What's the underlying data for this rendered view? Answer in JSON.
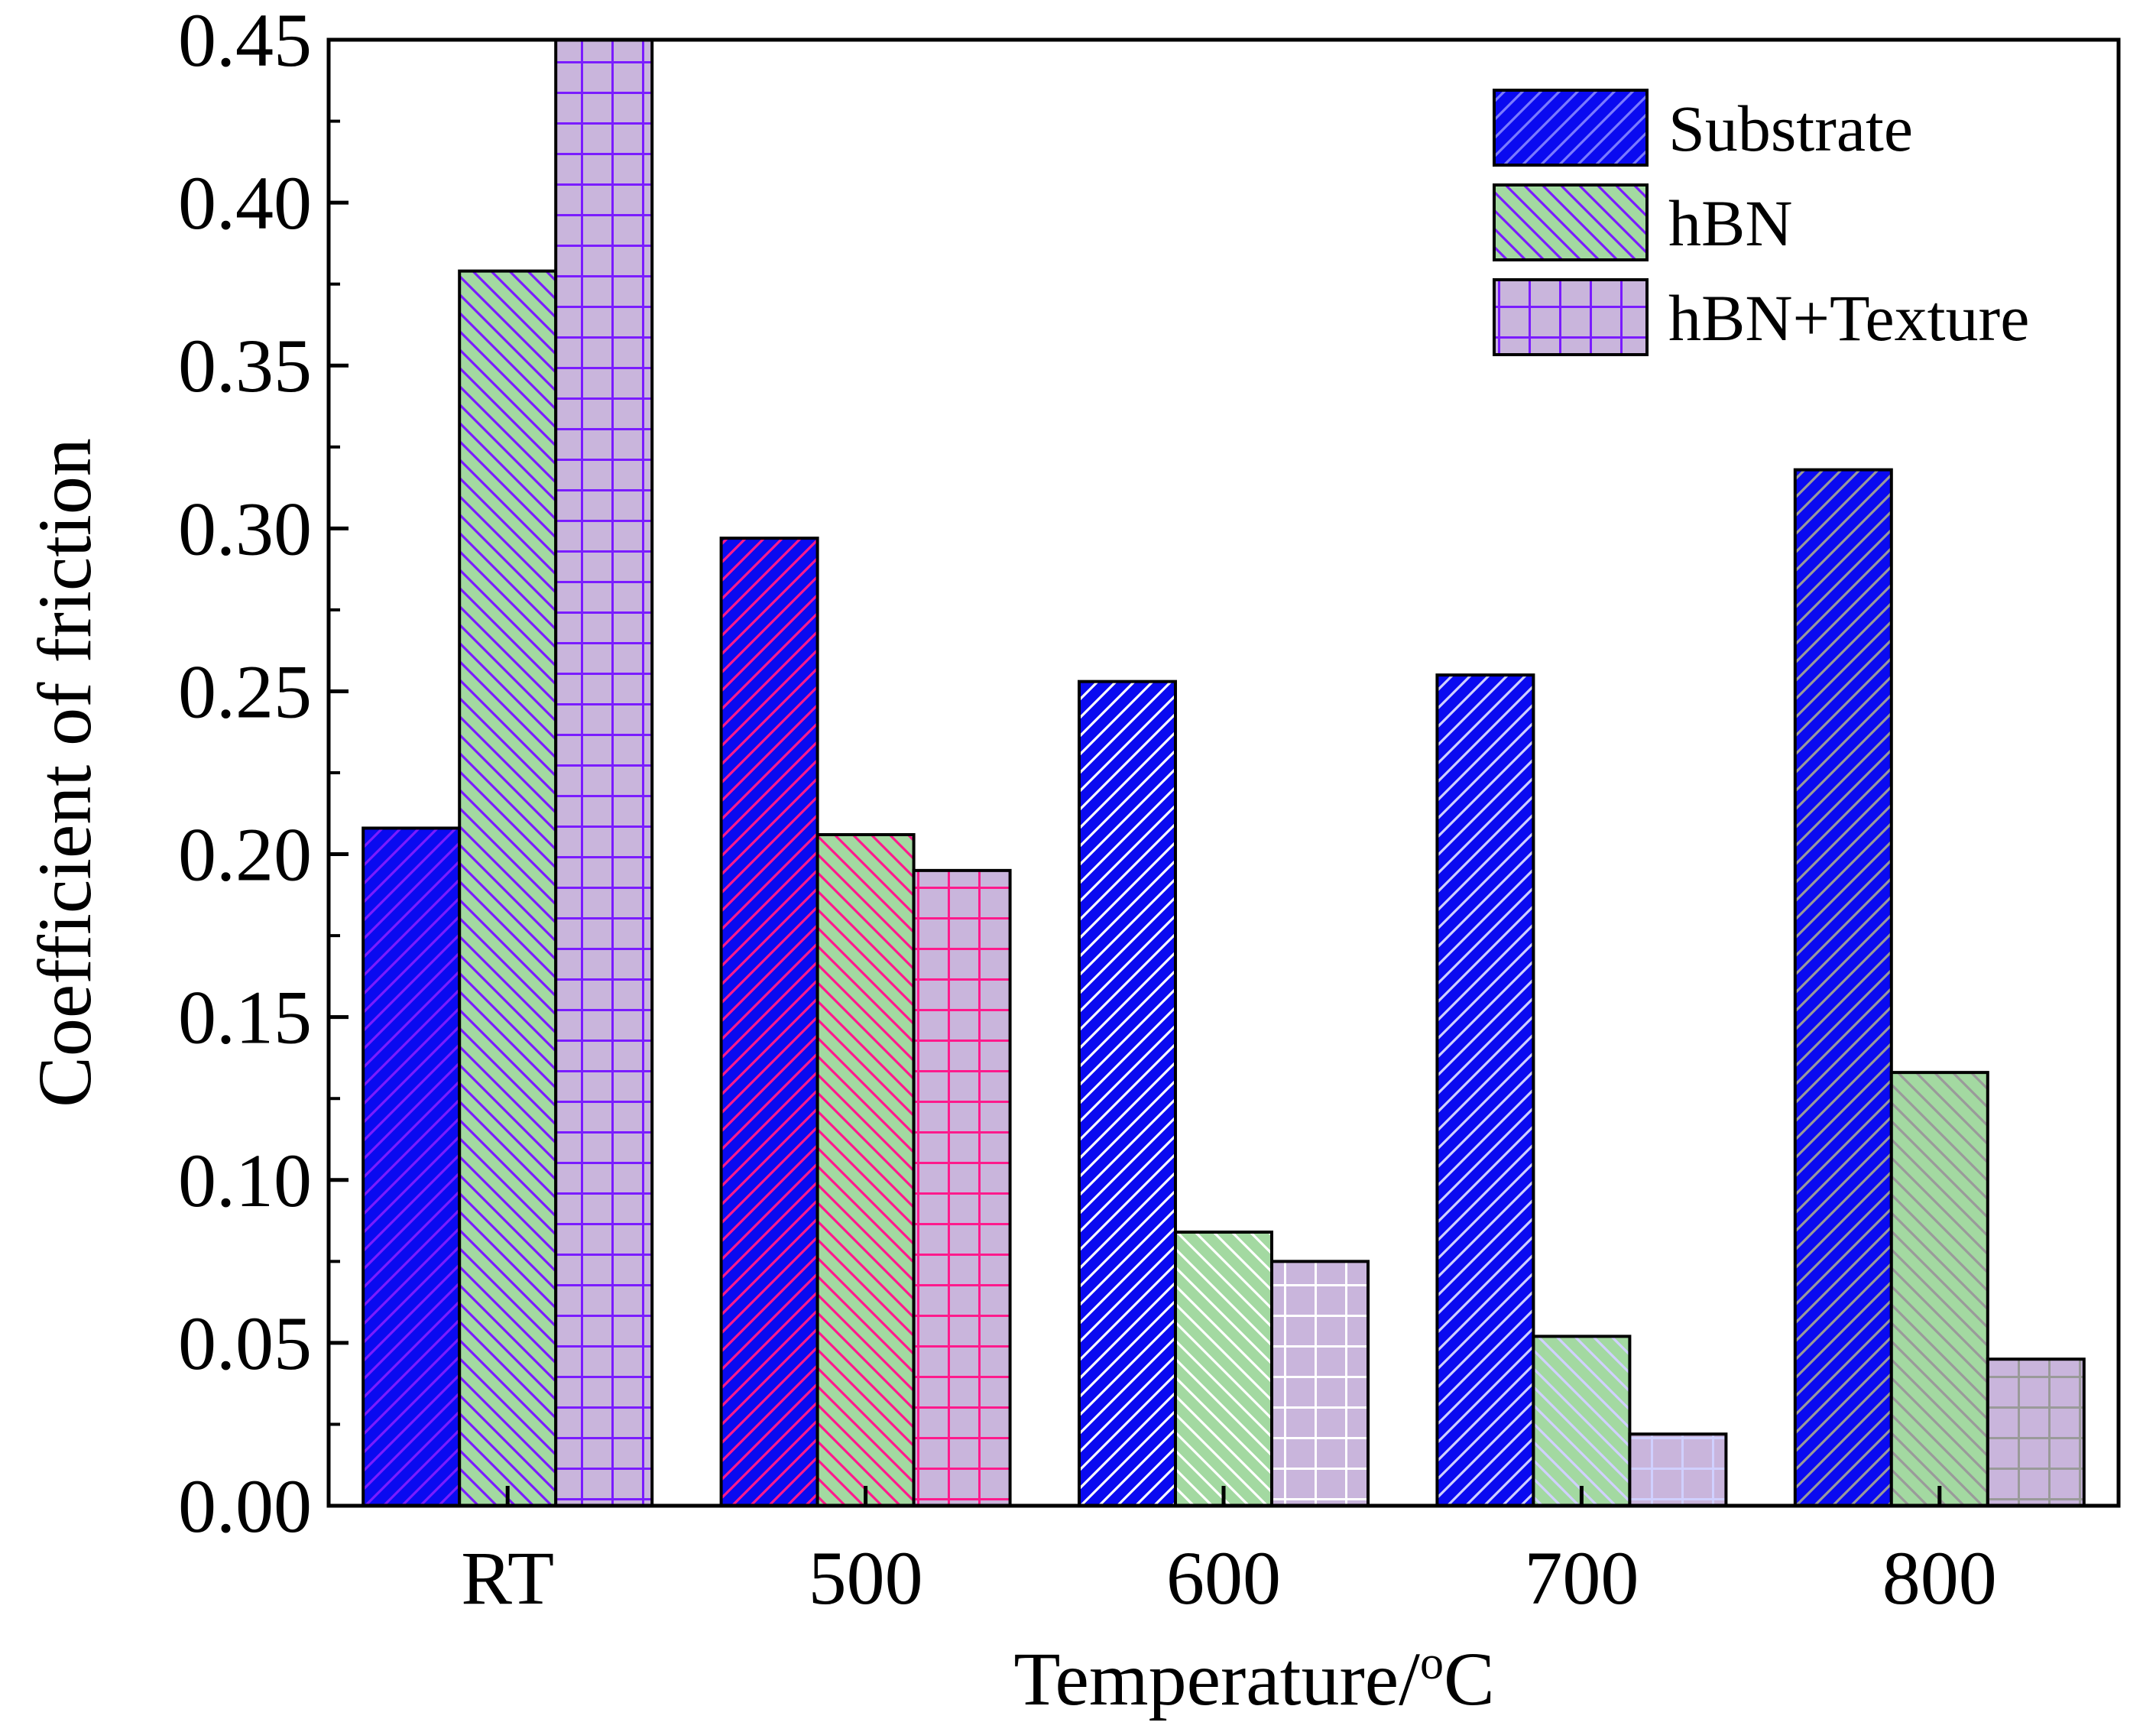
{
  "chart_data": {
    "type": "bar",
    "title": "",
    "xlabel": "Temperature/°C",
    "xlabel_parts": {
      "base": "Temperature/",
      "superscript": "o",
      "unit": "C"
    },
    "ylabel": "Coefficient of friction",
    "ylim": [
      0,
      0.45
    ],
    "yticks": [
      "0.00",
      "0.05",
      "0.10",
      "0.15",
      "0.20",
      "0.25",
      "0.30",
      "0.35",
      "0.40",
      "0.45"
    ],
    "categories": [
      "RT",
      "500",
      "600",
      "700",
      "800"
    ],
    "series": [
      {
        "name": "Substrate",
        "values": [
          0.208,
          0.297,
          0.253,
          0.255,
          0.318
        ]
      },
      {
        "name": "hBN",
        "values": [
          0.379,
          0.206,
          0.084,
          0.052,
          0.133
        ]
      },
      {
        "name": "hBN+Texture",
        "values": [
          0.45,
          0.195,
          0.075,
          0.022,
          0.045
        ]
      }
    ],
    "legend_position": "top-right",
    "grid": false,
    "colors": {
      "Substrate": "#0a0af0",
      "hBN": "#a3d9a1",
      "hBN+Texture": "#c9b5dc"
    },
    "pattern_colors": {
      "RT": "#7a1cff",
      "500": "#ff1a8c",
      "600": "#ffffff",
      "700": "#d0d0ff",
      "800": "#9a9a9a"
    }
  }
}
